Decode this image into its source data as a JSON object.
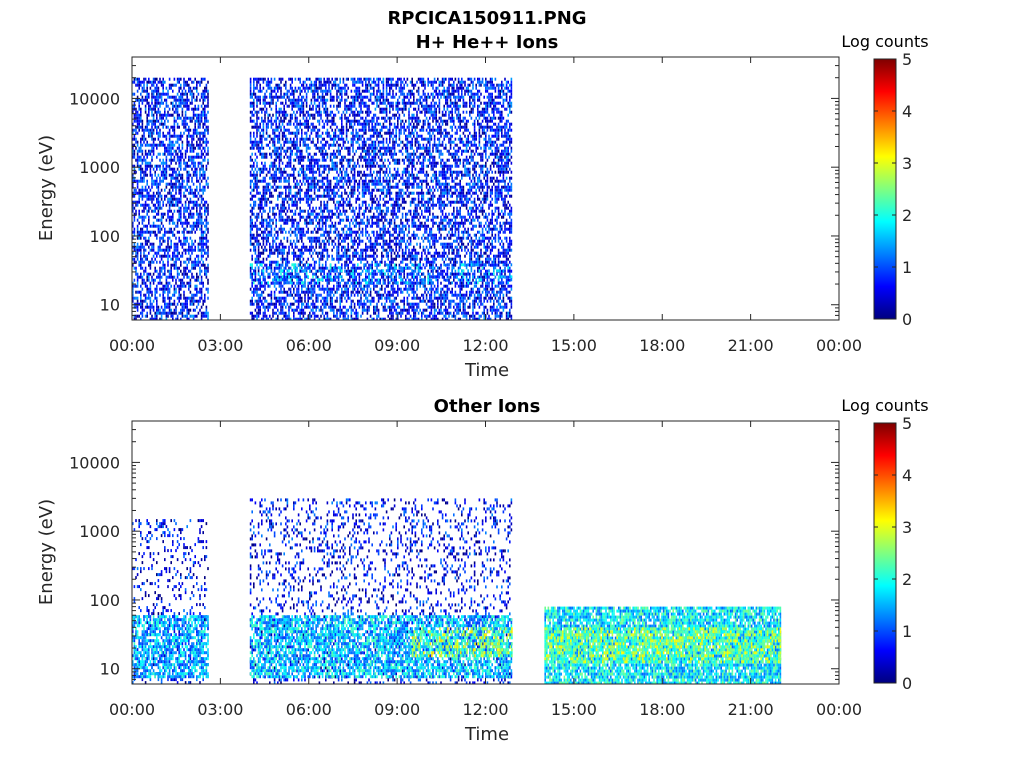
{
  "figure": {
    "title": "RPCICA150911.PNG"
  },
  "chart_data": [
    {
      "type": "heatmap",
      "title": "H+ He++ Ions",
      "xlabel": "Time",
      "ylabel": "Energy (eV)",
      "x_ticks": [
        "00:00",
        "03:00",
        "06:00",
        "09:00",
        "12:00",
        "15:00",
        "18:00",
        "21:00",
        "00:00"
      ],
      "x_range_hours": [
        0,
        24
      ],
      "y_scale": "log",
      "y_ticks": [
        "10",
        "100",
        "1000",
        "10000"
      ],
      "y_range_eV": [
        6,
        40000
      ],
      "colorbar": {
        "label": "Log counts",
        "ticks": [
          "0",
          "1",
          "2",
          "3",
          "4",
          "5"
        ],
        "range": [
          0,
          5
        ],
        "colormap": "jet"
      },
      "data_intervals_hours": [
        [
          0.0,
          2.6
        ],
        [
          4.0,
          12.9
        ]
      ],
      "populations": [
        {
          "t_start": 0.0,
          "t_end": 2.6,
          "e_min": 6,
          "e_max": 20000,
          "log_counts": 0.7,
          "coverage": 0.55
        },
        {
          "t_start": 4.0,
          "t_end": 12.9,
          "e_min": 6,
          "e_max": 20000,
          "log_counts": 0.7,
          "coverage": 0.55
        },
        {
          "t_start": 4.0,
          "t_end": 12.9,
          "e_min": 20,
          "e_max": 40,
          "log_counts": 1.4,
          "coverage": 0.25
        }
      ]
    },
    {
      "type": "heatmap",
      "title": "Other Ions",
      "xlabel": "Time",
      "ylabel": "Energy (eV)",
      "x_ticks": [
        "00:00",
        "03:00",
        "06:00",
        "09:00",
        "12:00",
        "15:00",
        "18:00",
        "21:00",
        "00:00"
      ],
      "x_range_hours": [
        0,
        24
      ],
      "y_scale": "log",
      "y_ticks": [
        "10",
        "100",
        "1000",
        "10000"
      ],
      "y_range_eV": [
        6,
        40000
      ],
      "colorbar": {
        "label": "Log counts",
        "ticks": [
          "0",
          "1",
          "2",
          "3",
          "4",
          "5"
        ],
        "range": [
          0,
          5
        ],
        "colormap": "jet"
      },
      "data_intervals_hours": [
        [
          0.0,
          2.6
        ],
        [
          4.0,
          12.9
        ],
        [
          14.0,
          22.0
        ]
      ],
      "populations": [
        {
          "t_start": 0.0,
          "t_end": 2.6,
          "e_min": 6,
          "e_max": 1500,
          "log_counts": 0.6,
          "coverage": 0.18
        },
        {
          "t_start": 0.0,
          "t_end": 2.6,
          "e_min": 8,
          "e_max": 60,
          "log_counts": 1.5,
          "coverage": 0.7
        },
        {
          "t_start": 4.0,
          "t_end": 12.9,
          "e_min": 6,
          "e_max": 3000,
          "log_counts": 0.6,
          "coverage": 0.2
        },
        {
          "t_start": 4.0,
          "t_end": 12.9,
          "e_min": 8,
          "e_max": 60,
          "log_counts": 1.6,
          "coverage": 0.7
        },
        {
          "t_start": 9.5,
          "t_end": 12.9,
          "e_min": 15,
          "e_max": 40,
          "log_counts": 2.6,
          "coverage": 0.4
        },
        {
          "t_start": 14.0,
          "t_end": 22.0,
          "e_min": 6,
          "e_max": 80,
          "log_counts": 1.8,
          "coverage": 0.85
        },
        {
          "t_start": 14.0,
          "t_end": 22.0,
          "e_min": 12,
          "e_max": 40,
          "log_counts": 2.5,
          "coverage": 0.6
        }
      ]
    }
  ]
}
